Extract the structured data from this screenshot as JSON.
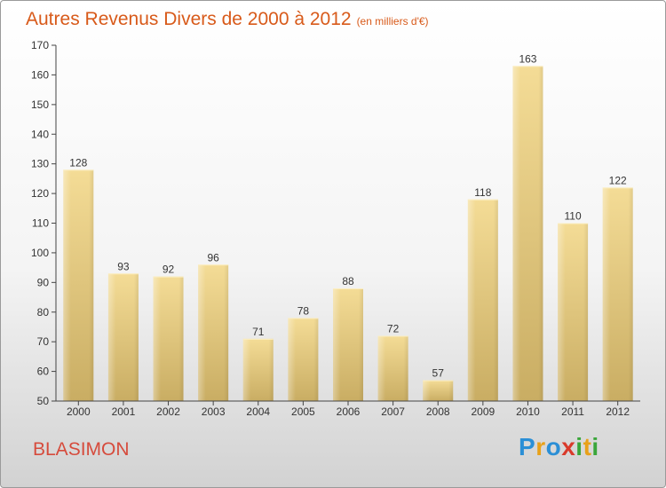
{
  "title": "Autres Revenus Divers de 2000 à 2012",
  "subtitle": "(en milliers d'€)",
  "location": "BLASIMON",
  "logo": {
    "letters": [
      {
        "ch": "P",
        "color": "#2b8fd6"
      },
      {
        "ch": "r",
        "color": "#e8a11a"
      },
      {
        "ch": "o",
        "color": "#2b8fd6"
      },
      {
        "ch": "x",
        "color": "#d93a2b"
      },
      {
        "ch": "i",
        "color": "#3aa63a"
      },
      {
        "ch": "t",
        "color": "#e8a11a"
      },
      {
        "ch": "i",
        "color": "#3aa63a"
      }
    ]
  },
  "colors": {
    "title": "#d85a1a",
    "location": "#d64b3c",
    "bar_top": "#f4dc96",
    "bar_bottom": "#c9ad63",
    "axis": "#444444"
  },
  "chart_data": {
    "type": "bar",
    "categories": [
      "2000",
      "2001",
      "2002",
      "2003",
      "2004",
      "2005",
      "2006",
      "2007",
      "2008",
      "2009",
      "2010",
      "2011",
      "2012"
    ],
    "values": [
      128,
      93,
      92,
      96,
      71,
      78,
      88,
      72,
      57,
      118,
      163,
      110,
      122
    ],
    "ylim": [
      50,
      170
    ],
    "yticks": [
      50,
      60,
      70,
      80,
      90,
      100,
      110,
      120,
      130,
      140,
      150,
      160,
      170
    ],
    "grid": false,
    "data_labels": true
  }
}
